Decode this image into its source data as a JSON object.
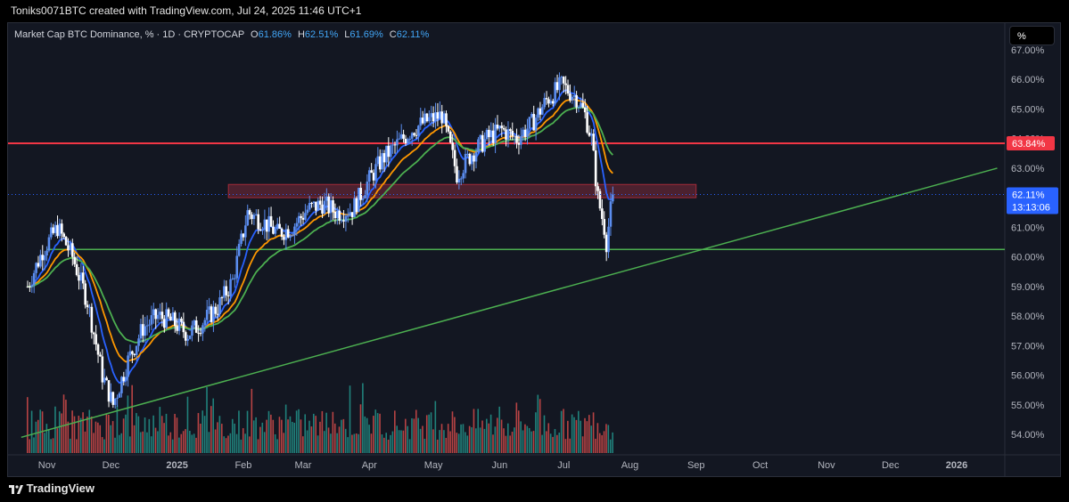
{
  "header": {
    "attribution": "Toniks0071BTC created with TradingView.com, Jul 24, 2025 11:46 UTC+1"
  },
  "legend": {
    "symbol": "Market Cap BTC Dominance, % · 1D · CRYPTOCAP",
    "o_label": "O",
    "o_value": "61.86%",
    "h_label": "H",
    "h_value": "62.51%",
    "l_label": "L",
    "l_value": "61.69%",
    "c_label": "C",
    "c_value": "62.11%"
  },
  "toolbar": {
    "percent_label": "%"
  },
  "footer": {
    "brand": "TradingView"
  },
  "colors": {
    "background": "#131722",
    "up_candle": "#5b8def",
    "down_candle": "#ffffff",
    "resistance": "#f23645",
    "support": "#4caf50",
    "trendline": "#4caf50",
    "ema_fast": "#2962ff",
    "ema_mid": "#ff9800",
    "ema_slow": "#4caf50",
    "vol_up": "#26a69a",
    "vol_down": "#ef5350",
    "zone": "#7b2a3a"
  },
  "chart_data": {
    "type": "candlestick",
    "title": "Market Cap BTC Dominance, % · 1D · CRYPTOCAP",
    "y_axis": {
      "unit": "%",
      "ylim": [
        53.3,
        67.2
      ],
      "ticks": [
        "67.00%",
        "66.00%",
        "65.00%",
        "64.00%",
        "63.00%",
        "62.00%",
        "61.00%",
        "60.00%",
        "59.00%",
        "58.00%",
        "57.00%",
        "56.00%",
        "55.00%",
        "54.00%"
      ]
    },
    "x_axis": {
      "ticks": [
        "Nov",
        "Dec",
        "2025",
        "Feb",
        "Mar",
        "Apr",
        "May",
        "Jun",
        "Jul",
        "Aug",
        "Sep",
        "Oct",
        "Nov",
        "Dec",
        "2026"
      ]
    },
    "price_path": [
      [
        "2024-10-23",
        59.0
      ],
      [
        "2024-10-30",
        60.2
      ],
      [
        "2024-11-06",
        61.0
      ],
      [
        "2024-11-13",
        60.0
      ],
      [
        "2024-11-20",
        58.5
      ],
      [
        "2024-11-27",
        56.0
      ],
      [
        "2024-12-02",
        55.0
      ],
      [
        "2024-12-09",
        56.5
      ],
      [
        "2024-12-16",
        57.6
      ],
      [
        "2024-12-23",
        58.0
      ],
      [
        "2024-12-30",
        57.8
      ],
      [
        "2025-01-06",
        57.4
      ],
      [
        "2025-01-13",
        57.8
      ],
      [
        "2025-01-20",
        58.3
      ],
      [
        "2025-01-27",
        59.2
      ],
      [
        "2025-02-03",
        61.5
      ],
      [
        "2025-02-10",
        61.2
      ],
      [
        "2025-02-17",
        60.8
      ],
      [
        "2025-02-24",
        61.0
      ],
      [
        "2025-03-03",
        61.6
      ],
      [
        "2025-03-10",
        61.8
      ],
      [
        "2025-03-17",
        61.5
      ],
      [
        "2025-03-24",
        61.6
      ],
      [
        "2025-03-31",
        62.5
      ],
      [
        "2025-04-07",
        63.3
      ],
      [
        "2025-04-14",
        63.8
      ],
      [
        "2025-04-21",
        64.3
      ],
      [
        "2025-04-28",
        64.6
      ],
      [
        "2025-05-05",
        64.8
      ],
      [
        "2025-05-12",
        62.8
      ],
      [
        "2025-05-19",
        63.5
      ],
      [
        "2025-05-26",
        64.0
      ],
      [
        "2025-06-02",
        64.3
      ],
      [
        "2025-06-09",
        64.0
      ],
      [
        "2025-06-16",
        64.5
      ],
      [
        "2025-06-23",
        65.3
      ],
      [
        "2025-06-30",
        65.8
      ],
      [
        "2025-07-07",
        65.4
      ],
      [
        "2025-07-11",
        64.8
      ],
      [
        "2025-07-14",
        64.0
      ],
      [
        "2025-07-17",
        62.0
      ],
      [
        "2025-07-20",
        61.0
      ],
      [
        "2025-07-21",
        60.5
      ],
      [
        "2025-07-24",
        62.11
      ]
    ],
    "last_price": "62.11%",
    "countdown": "13:13:06",
    "resistance_level": 63.84,
    "resistance_label": "63.84%",
    "support_level": 60.25,
    "zone": {
      "from": "2025-01-25",
      "to": "2025-09-01",
      "top": 62.45,
      "bottom": 62.0
    },
    "trendline": {
      "from": [
        "2024-10-20",
        53.9
      ],
      "to": [
        "2026-01-20",
        63.0
      ]
    },
    "legend_position": "top-left"
  }
}
